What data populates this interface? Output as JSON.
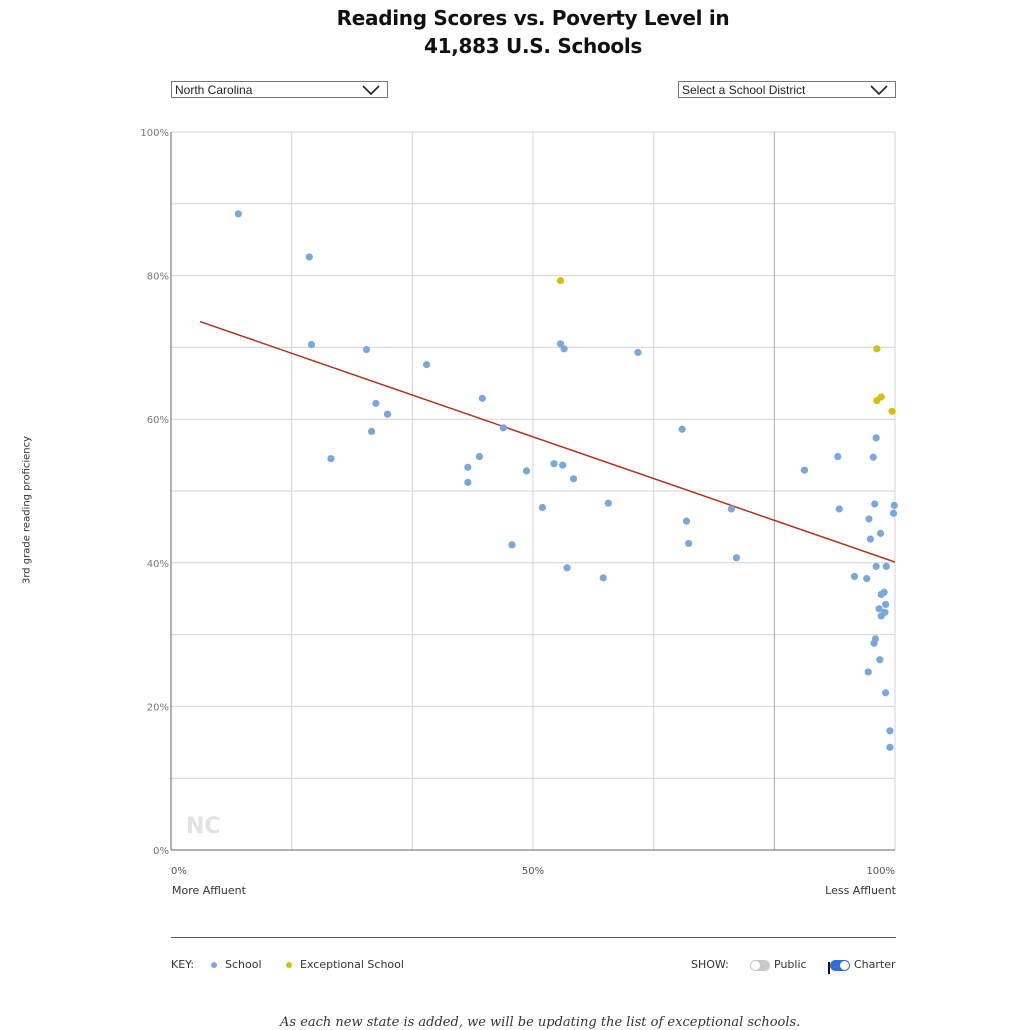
{
  "header": {
    "title_line1": "Reading Scores vs. Poverty Level in",
    "title_line2": "41,883 U.S. Schools"
  },
  "filters": {
    "state": "North Carolina",
    "district": "Select a School District"
  },
  "chart_data": {
    "type": "scatter",
    "title": "Reading Scores vs. Poverty Level in 41,883 U.S. Schools",
    "ylabel": "3rd grade reading proficiency",
    "xlabel_left": "More Affluent",
    "xlabel_right": "Less Affluent",
    "xlim": [
      0,
      100
    ],
    "ylim": [
      0,
      100
    ],
    "x_ticks": [
      "0%",
      "50%",
      "100%"
    ],
    "x_tick_values": [
      0,
      50,
      100
    ],
    "y_ticks": [
      "0%",
      "20%",
      "40%",
      "60%",
      "80%",
      "100%"
    ],
    "y_tick_values": [
      0,
      20,
      40,
      60,
      80,
      100
    ],
    "grid": true,
    "watermark": "NC",
    "colors": {
      "School": "#7aa8dc",
      "Exceptional School": "#d4be0f",
      "trendline": "#b5321e",
      "grid": "#d4d4d4"
    },
    "series": [
      {
        "name": "School",
        "points": [
          [
            9.3,
            88.6
          ],
          [
            19.1,
            82.6
          ],
          [
            19.4,
            70.4
          ],
          [
            22.1,
            54.5
          ],
          [
            27,
            69.7
          ],
          [
            27.7,
            58.3
          ],
          [
            28.3,
            62.2
          ],
          [
            29.9,
            60.7
          ],
          [
            35.3,
            67.6
          ],
          [
            41,
            53.3
          ],
          [
            41,
            51.2
          ],
          [
            42.6,
            54.8
          ],
          [
            43,
            62.9
          ],
          [
            45.9,
            58.8
          ],
          [
            47.1,
            42.5
          ],
          [
            49.1,
            52.8
          ],
          [
            51.3,
            47.7
          ],
          [
            52.9,
            53.8
          ],
          [
            53.8,
            70.5
          ],
          [
            54.3,
            69.8
          ],
          [
            54.1,
            53.6
          ],
          [
            54.7,
            39.3
          ],
          [
            55.6,
            51.7
          ],
          [
            59.7,
            37.9
          ],
          [
            60.4,
            48.3
          ],
          [
            64.5,
            69.3
          ],
          [
            70.6,
            58.6
          ],
          [
            71.2,
            45.8
          ],
          [
            71.5,
            42.7
          ],
          [
            77.4,
            47.5
          ],
          [
            78.1,
            40.7
          ],
          [
            87.5,
            52.9
          ],
          [
            92.1,
            54.8
          ],
          [
            92.3,
            47.5
          ],
          [
            94.4,
            38.1
          ],
          [
            96.1,
            37.8
          ],
          [
            96.4,
            46.1
          ],
          [
            96.6,
            43.3
          ],
          [
            97,
            54.7
          ],
          [
            97.2,
            48.2
          ],
          [
            97.4,
            57.4
          ],
          [
            97.4,
            39.5
          ],
          [
            97.3,
            29.4
          ],
          [
            97.1,
            28.8
          ],
          [
            96.3,
            24.8
          ],
          [
            98,
            44.1
          ],
          [
            97.8,
            33.6
          ],
          [
            97.9,
            26.5
          ],
          [
            98.1,
            35.6
          ],
          [
            98.1,
            32.6
          ],
          [
            98.6,
            33.1
          ],
          [
            98.5,
            35.9
          ],
          [
            98.7,
            34.2
          ],
          [
            98.8,
            39.5
          ],
          [
            98.7,
            21.9
          ],
          [
            99.3,
            16.6
          ],
          [
            99.3,
            14.3
          ],
          [
            99.9,
            48
          ],
          [
            99.8,
            46.9
          ]
        ]
      },
      {
        "name": "Exceptional School",
        "points": [
          [
            53.8,
            79.3
          ],
          [
            97.5,
            69.8
          ],
          [
            97.5,
            62.6
          ],
          [
            98.1,
            63.1
          ],
          [
            99.6,
            61.1
          ]
        ]
      }
    ],
    "trendline": {
      "from": [
        4,
        73.6
      ],
      "to": [
        100,
        40.1
      ]
    }
  },
  "legend": {
    "key_label": "KEY:",
    "school_label": "School",
    "exceptional_label": "Exceptional School"
  },
  "show": {
    "show_label": "SHOW:",
    "public_label": "Public",
    "charter_label": "Charter",
    "public_on": false,
    "charter_on": true
  },
  "footer": {
    "caption": "As each new state is added, we will be updating the list of exceptional schools."
  }
}
